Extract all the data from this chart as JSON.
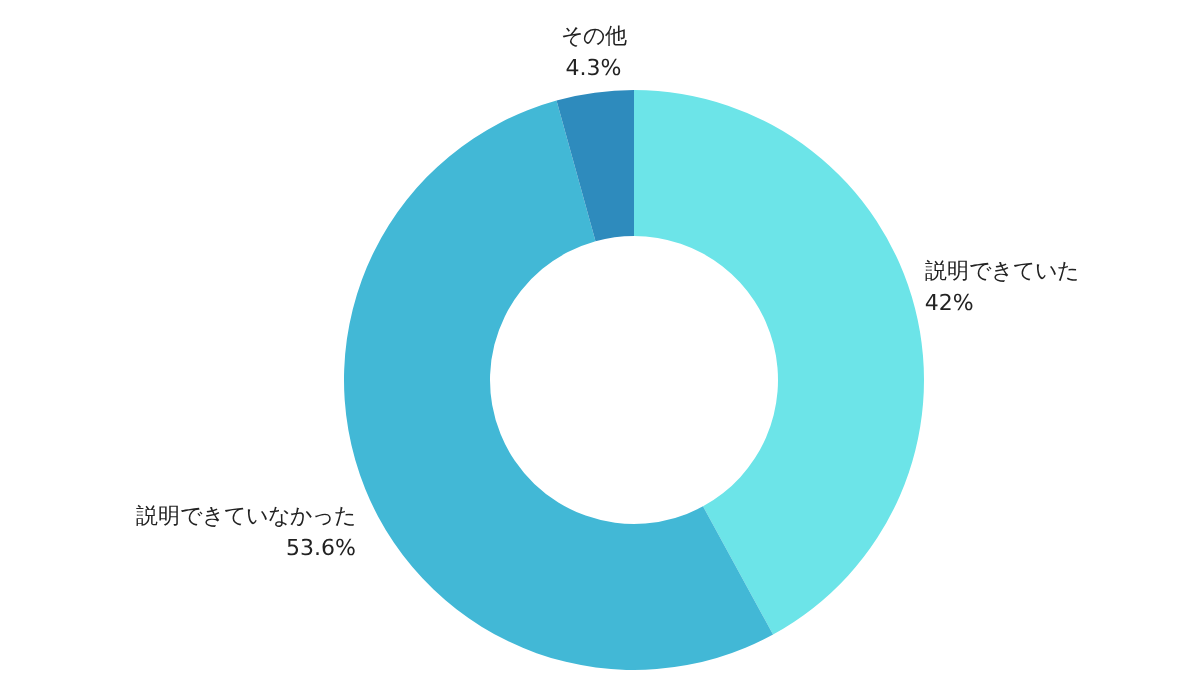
{
  "chart_data": {
    "type": "donut",
    "categories": [
      "説明できていた",
      "説明できていなかった",
      "その他"
    ],
    "values": [
      42,
      53.6,
      4.3
    ],
    "colors": [
      "#6ce4e8",
      "#42b8d6",
      "#2e8bbd"
    ],
    "value_labels": [
      "42%",
      "53.6%",
      "4.3%"
    ],
    "legend": false
  }
}
